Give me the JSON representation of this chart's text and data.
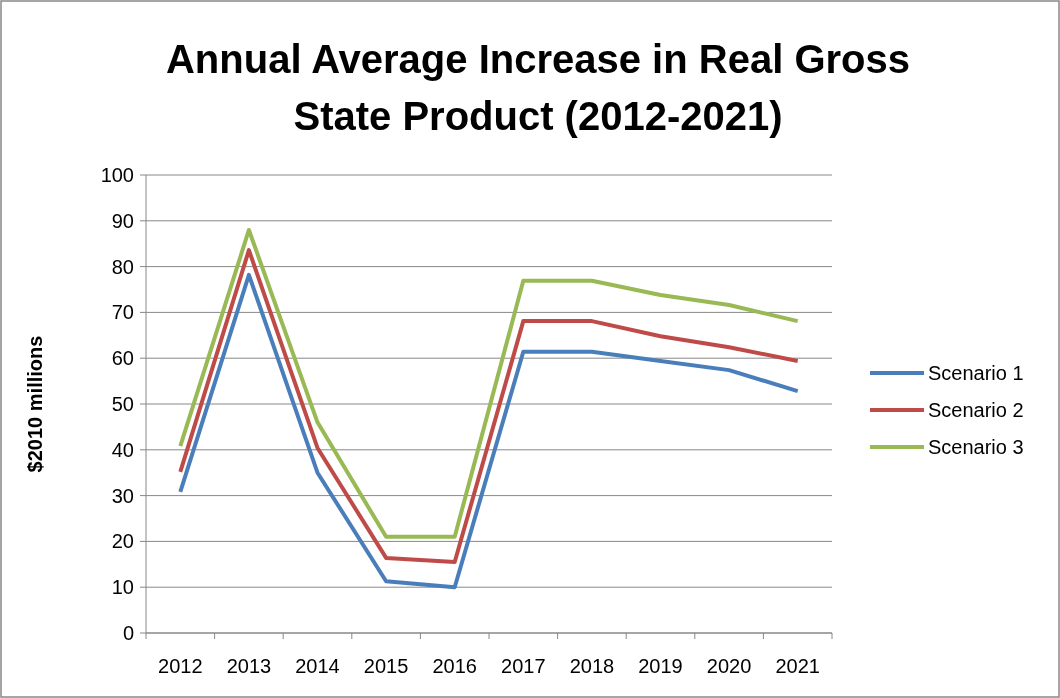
{
  "chart_data": {
    "type": "line",
    "title": "Annual Average Increase in Real Gross State Product (2012-2021)",
    "ylabel": "$2010 millions",
    "categories": [
      "2012",
      "2013",
      "2014",
      "2015",
      "2016",
      "2017",
      "2018",
      "2019",
      "2020",
      "2021"
    ],
    "series": [
      {
        "name": "Scenario 1",
        "color": "#4a7ebb",
        "values": [
          30.8,
          78.2,
          35,
          11.3,
          10,
          61.4,
          61.4,
          59.4,
          57.4,
          52.8
        ]
      },
      {
        "name": "Scenario 2",
        "color": "#be4b48",
        "values": [
          35.2,
          83.6,
          40.4,
          16.4,
          15.5,
          68.1,
          68.1,
          64.8,
          62.4,
          59.4
        ]
      },
      {
        "name": "Scenario 3",
        "color": "#98b954",
        "values": [
          40.8,
          88,
          46,
          21,
          21,
          76.9,
          76.9,
          73.8,
          71.6,
          68.1
        ]
      }
    ],
    "ylim": [
      0,
      100
    ],
    "yticks": [
      0,
      10,
      20,
      30,
      40,
      50,
      60,
      70,
      80,
      90,
      100
    ],
    "grid": "y",
    "legend": "right",
    "marker": "none",
    "line_style": "solid"
  }
}
